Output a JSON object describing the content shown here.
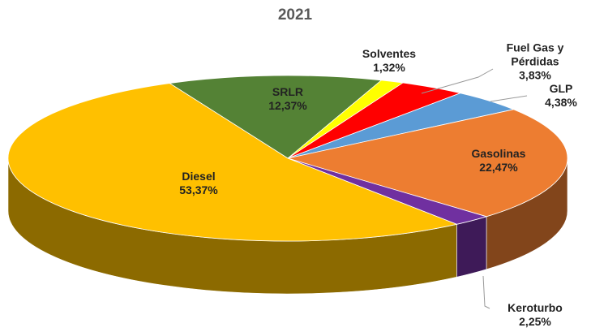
{
  "chart_data": {
    "type": "pie",
    "title": "2021",
    "categories": [
      "SRLR",
      "Solventes",
      "Fuel Gas y Pérdidas",
      "GLP",
      "Gasolinas",
      "Keroturbo",
      "Diesel"
    ],
    "values": [
      12.37,
      1.32,
      3.83,
      4.38,
      22.47,
      2.25,
      53.37
    ],
    "value_labels": [
      "12,37%",
      "1,32%",
      "3,83%",
      "4,38%",
      "22,47%",
      "2,25%",
      "53,37%"
    ],
    "colors": [
      "#548235",
      "#ffff00",
      "#ff0000",
      "#5b9bd5",
      "#ed7d31",
      "#7030a0",
      "#ffc000"
    ]
  }
}
